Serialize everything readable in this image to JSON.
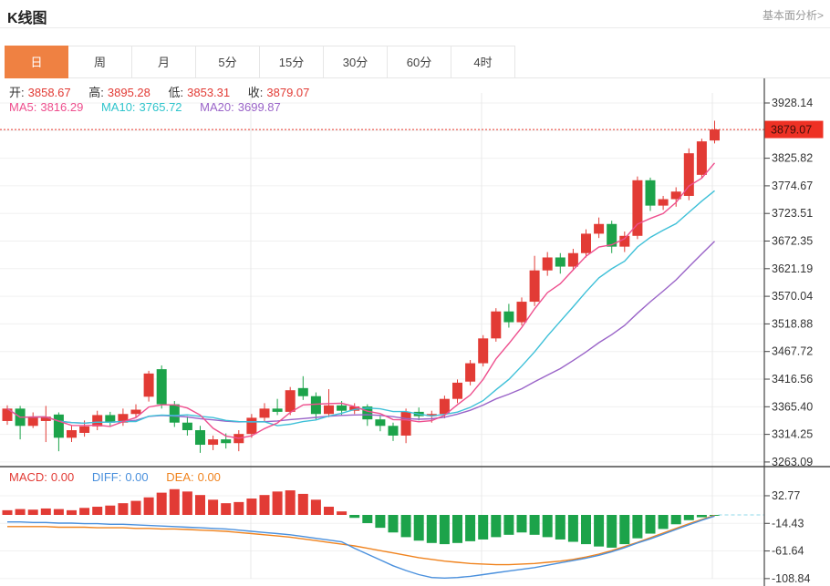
{
  "header": {
    "title": "K线图",
    "link_label": "基本面分析>"
  },
  "tabs": {
    "active_index": 0,
    "items": [
      "日",
      "周",
      "月",
      "5分",
      "15分",
      "30分",
      "60分",
      "4时"
    ]
  },
  "readout": {
    "ohlc": [
      {
        "label": "开:",
        "value": "3858.67"
      },
      {
        "label": "高:",
        "value": "3895.28"
      },
      {
        "label": "低:",
        "value": "3853.31"
      },
      {
        "label": "收:",
        "value": "3879.07"
      }
    ],
    "ma": [
      {
        "label": "MA5:",
        "value": "3816.29"
      },
      {
        "label": "MA10:",
        "value": "3765.72"
      },
      {
        "label": "MA20:",
        "value": "3699.87"
      }
    ]
  },
  "macd_readout": [
    {
      "label": "MACD:",
      "value": "0.00"
    },
    {
      "label": "DIFF:",
      "value": "0.00"
    },
    {
      "label": "DEA:",
      "value": "0.00"
    }
  ],
  "chart_data": {
    "type": "candlestick+macd",
    "title": "K线图 daily candlestick chart with MACD pane",
    "price_axis": {
      "ticks": [
        3928.14,
        3825.82,
        3774.67,
        3723.51,
        3672.35,
        3621.19,
        3570.04,
        3518.88,
        3467.72,
        3416.56,
        3365.4,
        3314.25,
        3263.09
      ],
      "current_price": 3879.07
    },
    "macd_axis": {
      "ticks": [
        32.77,
        -14.43,
        -61.64,
        -108.84
      ]
    },
    "candles_ohlc": [
      [
        3339,
        3368,
        3332,
        3362
      ],
      [
        3362,
        3367,
        3305,
        3330
      ],
      [
        3330,
        3355,
        3326,
        3347
      ],
      [
        3339,
        3367,
        3300,
        3347
      ],
      [
        3351,
        3355,
        3283,
        3308
      ],
      [
        3308,
        3330,
        3300,
        3322
      ],
      [
        3317,
        3340,
        3310,
        3329
      ],
      [
        3329,
        3358,
        3322,
        3350
      ],
      [
        3350,
        3356,
        3328,
        3336
      ],
      [
        3336,
        3362,
        3330,
        3352
      ],
      [
        3352,
        3370,
        3345,
        3360
      ],
      [
        3384,
        3432,
        3375,
        3427
      ],
      [
        3435,
        3442,
        3362,
        3370
      ],
      [
        3370,
        3376,
        3328,
        3336
      ],
      [
        3336,
        3348,
        3312,
        3322
      ],
      [
        3322,
        3330,
        3280,
        3295
      ],
      [
        3295,
        3312,
        3285,
        3305
      ],
      [
        3305,
        3316,
        3288,
        3298
      ],
      [
        3298,
        3322,
        3283,
        3315
      ],
      [
        3315,
        3352,
        3308,
        3345
      ],
      [
        3345,
        3372,
        3338,
        3362
      ],
      [
        3362,
        3380,
        3350,
        3356
      ],
      [
        3356,
        3402,
        3350,
        3396
      ],
      [
        3400,
        3422,
        3378,
        3385
      ],
      [
        3385,
        3392,
        3342,
        3352
      ],
      [
        3352,
        3398,
        3346,
        3368
      ],
      [
        3368,
        3376,
        3350,
        3358
      ],
      [
        3358,
        3372,
        3352,
        3366
      ],
      [
        3366,
        3370,
        3330,
        3342
      ],
      [
        3342,
        3348,
        3320,
        3330
      ],
      [
        3330,
        3336,
        3302,
        3312
      ],
      [
        3312,
        3362,
        3298,
        3356
      ],
      [
        3356,
        3364,
        3340,
        3348
      ],
      [
        3348,
        3358,
        3336,
        3352
      ],
      [
        3352,
        3386,
        3344,
        3380
      ],
      [
        3380,
        3416,
        3372,
        3410
      ],
      [
        3412,
        3452,
        3405,
        3446
      ],
      [
        3446,
        3498,
        3440,
        3492
      ],
      [
        3492,
        3548,
        3486,
        3542
      ],
      [
        3542,
        3556,
        3512,
        3522
      ],
      [
        3522,
        3568,
        3516,
        3560
      ],
      [
        3560,
        3645,
        3552,
        3618
      ],
      [
        3618,
        3652,
        3608,
        3642
      ],
      [
        3642,
        3650,
        3612,
        3625
      ],
      [
        3625,
        3658,
        3618,
        3650
      ],
      [
        3650,
        3694,
        3642,
        3686
      ],
      [
        3686,
        3716,
        3678,
        3704
      ],
      [
        3704,
        3710,
        3650,
        3662
      ],
      [
        3662,
        3690,
        3652,
        3682
      ],
      [
        3682,
        3792,
        3676,
        3785
      ],
      [
        3785,
        3790,
        3728,
        3738
      ],
      [
        3738,
        3756,
        3730,
        3750
      ],
      [
        3750,
        3772,
        3736,
        3764
      ],
      [
        3756,
        3844,
        3748,
        3835
      ],
      [
        3795,
        3862,
        3788,
        3857
      ],
      [
        3858.67,
        3895.28,
        3853.31,
        3879.07
      ]
    ],
    "ma_windows": [
      5,
      10,
      20
    ],
    "macd": {
      "histogram": [
        8,
        10,
        9,
        11,
        10,
        8,
        12,
        14,
        16,
        20,
        24,
        30,
        38,
        44,
        40,
        34,
        26,
        20,
        22,
        28,
        34,
        40,
        42,
        36,
        26,
        14,
        6,
        -5,
        -14,
        -22,
        -30,
        -38,
        -44,
        -48,
        -50,
        -48,
        -45,
        -42,
        -38,
        -34,
        -30,
        -34,
        -38,
        -42,
        -46,
        -50,
        -54,
        -56,
        -50,
        -40,
        -32,
        -24,
        -16,
        -9,
        -4,
        -1
      ],
      "diff": [
        -12,
        -12,
        -13,
        -13,
        -14,
        -14,
        -15,
        -15,
        -16,
        -16,
        -17,
        -18,
        -19,
        -20,
        -21,
        -22,
        -23,
        -24,
        -26,
        -28,
        -30,
        -32,
        -34,
        -37,
        -40,
        -43,
        -46,
        -57,
        -67,
        -77,
        -87,
        -95,
        -102,
        -107,
        -108,
        -107,
        -105,
        -102,
        -99,
        -96,
        -93,
        -90,
        -86,
        -82,
        -78,
        -74,
        -69,
        -63,
        -56,
        -48,
        -41,
        -33,
        -25,
        -17,
        -9,
        -2
      ],
      "dea": [
        -20,
        -20,
        -20,
        -20,
        -21,
        -21,
        -21,
        -22,
        -22,
        -22,
        -23,
        -23,
        -24,
        -24,
        -25,
        -26,
        -27,
        -28,
        -30,
        -32,
        -34,
        -36,
        -38,
        -41,
        -44,
        -47,
        -50,
        -53,
        -57,
        -61,
        -65,
        -69,
        -73,
        -76,
        -79,
        -81,
        -83,
        -84,
        -85,
        -85,
        -84,
        -83,
        -81,
        -79,
        -76,
        -72,
        -67,
        -61,
        -54,
        -47,
        -39,
        -31,
        -23,
        -15,
        -8,
        -1
      ],
      "diff_current": 0.0
    },
    "colors": {
      "up": "#e23b35",
      "down": "#1ca34a",
      "ma5": "#ee4f8e",
      "ma10": "#3ec0d8",
      "ma20": "#9a64c8",
      "diff_line": "#4a90dd",
      "dea_line": "#f0831e",
      "price_line": "#e8392e",
      "tag_bg": "#ee3124",
      "tag_text": "#40100a",
      "grid": "#f0f0f0",
      "vgrid": "#e9e9e9",
      "axis": "#444444",
      "separator": "#4a4a4a",
      "diff_marker": "#8fd8e8",
      "active_tab": "#ef8142"
    },
    "grid": true,
    "legend_position": "top-left-overlay"
  }
}
